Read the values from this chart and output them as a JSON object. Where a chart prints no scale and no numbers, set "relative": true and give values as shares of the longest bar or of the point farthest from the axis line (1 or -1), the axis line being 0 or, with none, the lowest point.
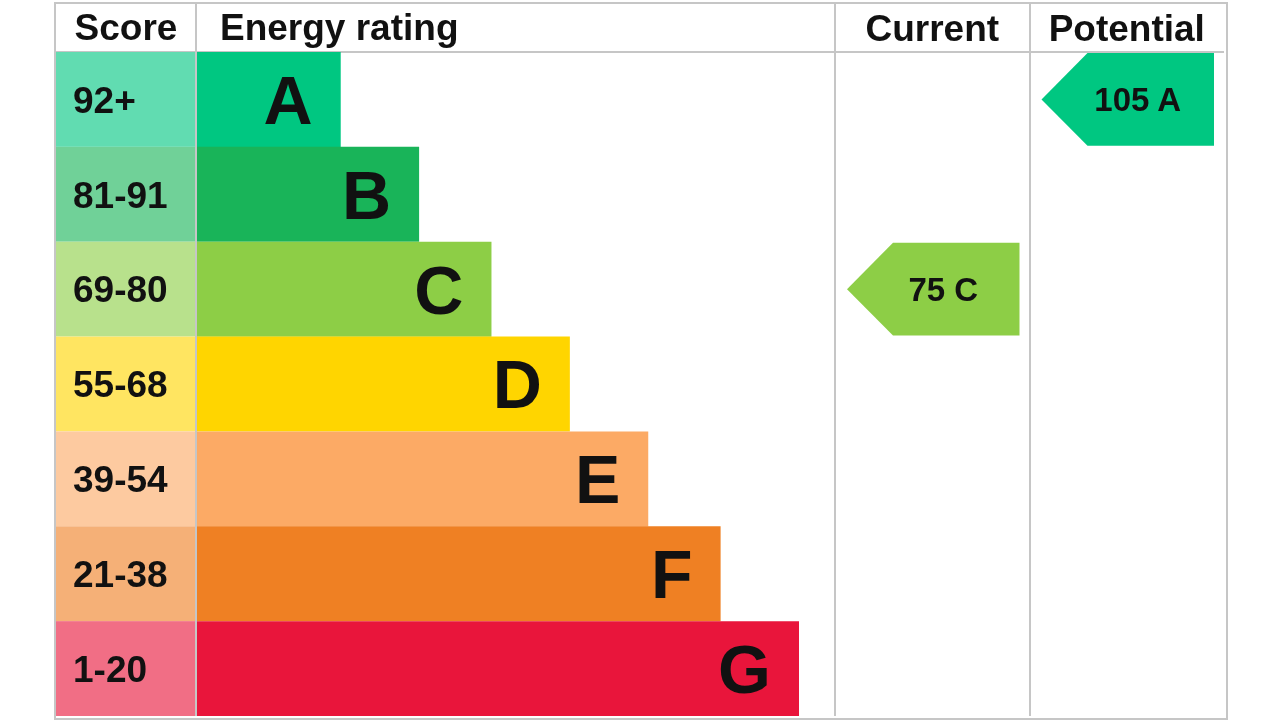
{
  "chart_data": [
    {
      "type": "bar",
      "orientation": "horizontal",
      "relative": true,
      "ylabel": "Score",
      "xlabel": "Energy rating",
      "categories": [
        "92+",
        "81-91",
        "69-80",
        "55-68",
        "39-54",
        "21-38",
        "1-20"
      ],
      "values": [
        0.24,
        0.37,
        0.49,
        0.62,
        0.75,
        0.87,
        1
      ],
      "colors": [
        "#00c781",
        "#19b459",
        "#8dce46",
        "#ffd500",
        "#fcaa65",
        "#ef8023",
        "#e9153b"
      ],
      "annotations": [
        {
          "text": "A",
          "x": 0.24,
          "y": "92+"
        },
        {
          "text": "B",
          "x": 0.37,
          "y": "81-91"
        },
        {
          "text": "C",
          "x": 0.49,
          "y": "69-80"
        },
        {
          "text": "D",
          "x": 0.62,
          "y": "55-68"
        },
        {
          "text": "E",
          "x": 0.75,
          "y": "39-54"
        },
        {
          "text": "F",
          "x": 0.87,
          "y": "21-38"
        },
        {
          "text": "G",
          "x": 1,
          "y": "1-20"
        }
      ]
    },
    {
      "type": "heatmap",
      "categories": [
        "Current",
        "Potential"
      ],
      "y_categories": [
        "92+",
        "81-91",
        "69-80",
        "55-68",
        "39-54",
        "21-38",
        "1-20"
      ],
      "cells": [
        [
          null,
          105
        ],
        [
          null,
          null
        ],
        [
          75,
          null
        ],
        [
          null,
          null
        ],
        [
          null,
          null
        ],
        [
          null,
          null
        ],
        [
          null,
          null
        ]
      ],
      "cell_labels": [
        [
          null,
          "105 A"
        ],
        [
          null,
          null
        ],
        [
          "75 C",
          null
        ],
        [
          null,
          null
        ],
        [
          null,
          null
        ],
        [
          null,
          null
        ],
        [
          null,
          null
        ]
      ],
      "tick_labels": "x"
    }
  ]
}
